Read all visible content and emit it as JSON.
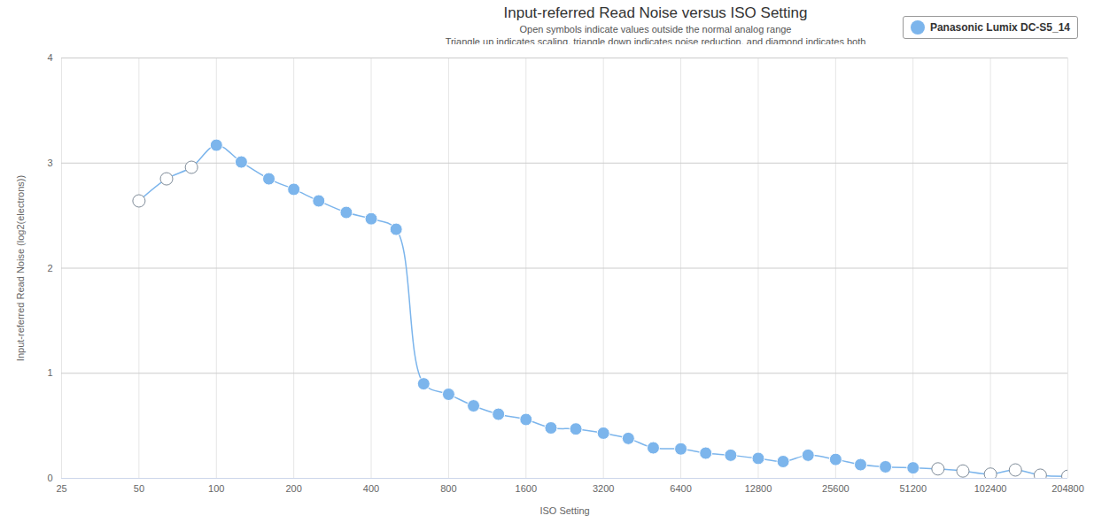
{
  "chart_data": {
    "type": "line",
    "title": "Input-referred Read Noise versus ISO Setting",
    "subtitle": [
      "Open symbols indicate values outside the normal analog range",
      "Triangle up indicates scaling, triangle down indicates noise reduction, and diamond indicates both"
    ],
    "x_label": "ISO Setting",
    "y_label": "Input-referred Read Noise (log2(electrons))",
    "x": [
      50,
      64,
      80,
      100,
      125,
      160,
      200,
      250,
      320,
      400,
      500,
      640,
      800,
      1000,
      1250,
      1600,
      2000,
      2500,
      3200,
      4000,
      5000,
      6400,
      8000,
      10000,
      12800,
      16000,
      20000,
      25600,
      32000,
      40000,
      51200,
      64000,
      80000,
      102400,
      128000,
      160000,
      204800
    ],
    "series": [
      {
        "name": "Panasonic Lumix DC-S5_14",
        "color": "#7cb5ec",
        "marker": "circle",
        "values": [
          2.64,
          2.85,
          2.96,
          3.17,
          3.01,
          2.85,
          2.75,
          2.64,
          2.53,
          2.47,
          2.37,
          0.9,
          0.8,
          0.69,
          0.61,
          0.56,
          0.48,
          0.47,
          0.43,
          0.38,
          0.29,
          0.28,
          0.24,
          0.22,
          0.19,
          0.16,
          0.22,
          0.18,
          0.13,
          0.11,
          0.1,
          0.09,
          0.07,
          0.04,
          0.08,
          0.03,
          0.02
        ],
        "outside_analog_range": [
          true,
          true,
          true,
          false,
          false,
          false,
          false,
          false,
          false,
          false,
          false,
          false,
          false,
          false,
          false,
          false,
          false,
          false,
          false,
          false,
          false,
          false,
          false,
          false,
          false,
          false,
          false,
          false,
          false,
          false,
          false,
          true,
          true,
          true,
          true,
          true,
          true
        ]
      }
    ],
    "log": "x",
    "xlim": [
      25,
      204800
    ],
    "xticks": [
      25,
      50,
      100,
      200,
      400,
      800,
      1600,
      3200,
      6400,
      12800,
      25600,
      51200,
      102400,
      204800
    ],
    "ylim": [
      0,
      4
    ],
    "yticks": [
      0,
      1,
      2,
      3,
      4
    ],
    "grid": true,
    "legend": "top-right"
  }
}
